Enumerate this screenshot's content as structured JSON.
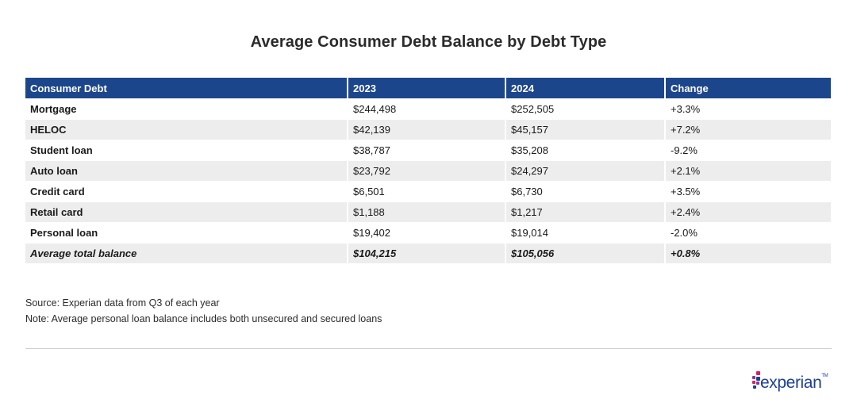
{
  "title": "Average Consumer Debt Balance by Debt Type",
  "chart_data": {
    "type": "table",
    "title": "Average Consumer Debt Balance by Debt Type",
    "columns": [
      "Consumer Debt",
      "2023",
      "2024",
      "Change"
    ],
    "rows": [
      {
        "label": "Mortgage",
        "y2023": "$244,498",
        "y2024": "$252,505",
        "change": "+3.3%"
      },
      {
        "label": "HELOC",
        "y2023": "$42,139",
        "y2024": "$45,157",
        "change": "+7.2%"
      },
      {
        "label": "Student loan",
        "y2023": "$38,787",
        "y2024": "$35,208",
        "change": "-9.2%"
      },
      {
        "label": "Auto loan",
        "y2023": "$23,792",
        "y2024": "$24,297",
        "change": "+2.1%"
      },
      {
        "label": "Credit card",
        "y2023": "$6,501",
        "y2024": "$6,730",
        "change": "+3.5%"
      },
      {
        "label": "Retail card",
        "y2023": "$1,188",
        "y2024": "$1,217",
        "change": "+2.4%"
      },
      {
        "label": "Personal loan",
        "y2023": "$19,402",
        "y2024": "$19,014",
        "change": "-2.0%"
      }
    ],
    "total": {
      "label": "Average total balance",
      "y2023": "$104,215",
      "y2024": "$105,056",
      "change": "+0.8%"
    }
  },
  "notes": {
    "source": "Source: Experian data from Q3 of each year",
    "note": "Note: Average personal loan balance includes both unsecured and secured loans"
  },
  "logo": {
    "text": "experian",
    "tm": "TM"
  },
  "colors": {
    "header_bg": "#1c468c",
    "stripe": "#ededed",
    "logo_blue": "#1c3f94",
    "logo_dots": [
      "#d71e5e",
      "#7a3b97",
      "#1c3f94",
      "#d71e5e",
      "#7a3b97",
      "#1c3f94"
    ]
  }
}
